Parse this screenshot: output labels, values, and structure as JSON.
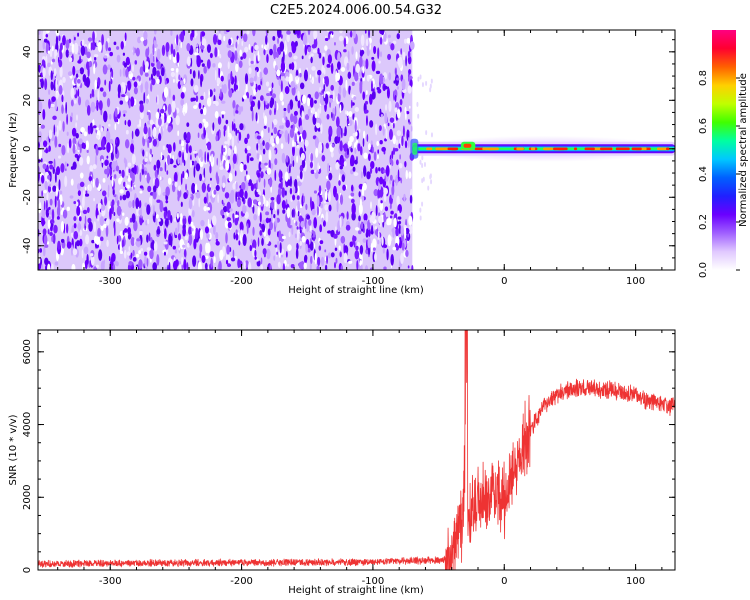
{
  "page_title": "C2E5.2024.006.00.54.G32",
  "chart_data": [
    {
      "type": "heatmap",
      "xlabel": "Height of straight line (km)",
      "ylabel": "Frequency (Hz)",
      "xlim": [
        -355,
        130
      ],
      "ylim": [
        -50,
        49
      ],
      "xticks": [
        -300,
        -200,
        -100,
        0,
        100
      ],
      "xtick_labels": [
        "-300",
        "-200",
        "-100",
        "0",
        "100"
      ],
      "yticks": [
        -40,
        -20,
        0,
        20,
        40
      ],
      "ytick_labels": [
        "-40",
        "-20",
        "0",
        "20",
        "40"
      ],
      "colorbar": {
        "label": "Normalized spectral amplitude",
        "range": [
          0,
          1
        ],
        "ticks": [
          0.0,
          0.2,
          0.4,
          0.6,
          0.8
        ],
        "tick_labels": [
          "0.0",
          "0.2",
          "0.4",
          "0.6",
          "0.8"
        ],
        "colormap": [
          "#ffffff",
          "#e0c8ff",
          "#a060ff",
          "#6a00ff",
          "#2020ff",
          "#0060ff",
          "#00c8ff",
          "#00ffa0",
          "#40ff00",
          "#c0ff00",
          "#ffd000",
          "#ff6000",
          "#ff0030",
          "#ff0080"
        ]
      },
      "noise_region": {
        "x": [
          -355,
          -70
        ],
        "freq": [
          -50,
          49
        ],
        "amplitude": [
          0.0,
          0.3
        ]
      },
      "signal_region": {
        "x": [
          -70,
          130
        ],
        "freq": 0,
        "peak_amplitude": 1.0
      },
      "grid": false
    },
    {
      "type": "line",
      "xlabel": "Height of straight line (km)",
      "ylabel": "SNR (10 * v/v)",
      "xlim": [
        -355,
        130
      ],
      "ylim": [
        0,
        6600
      ],
      "xticks": [
        -300,
        -200,
        -100,
        0,
        100
      ],
      "xtick_labels": [
        "-300",
        "-200",
        "-100",
        "0",
        "100"
      ],
      "yticks": [
        0,
        2000,
        4000,
        6000
      ],
      "ytick_labels": [
        "0",
        "2000",
        "4000",
        "6000"
      ],
      "line_color": "#ee3333",
      "grid": false,
      "series_profile": {
        "x": [
          -355,
          -100,
          -45,
          -40,
          -35,
          -32,
          -30,
          -29,
          -28,
          -25,
          -20,
          -15,
          -10,
          -5,
          0,
          5,
          10,
          15,
          20,
          25,
          30,
          40,
          50,
          60,
          70,
          80,
          90,
          100,
          110,
          120,
          130
        ],
        "y": [
          170,
          220,
          280,
          500,
          800,
          1300,
          3000,
          6600,
          1200,
          1700,
          1900,
          2000,
          2200,
          2300,
          1900,
          2500,
          3000,
          3500,
          3800,
          4200,
          4500,
          4800,
          4950,
          5000,
          5000,
          4950,
          4900,
          4800,
          4650,
          4550,
          4500
        ]
      }
    }
  ]
}
